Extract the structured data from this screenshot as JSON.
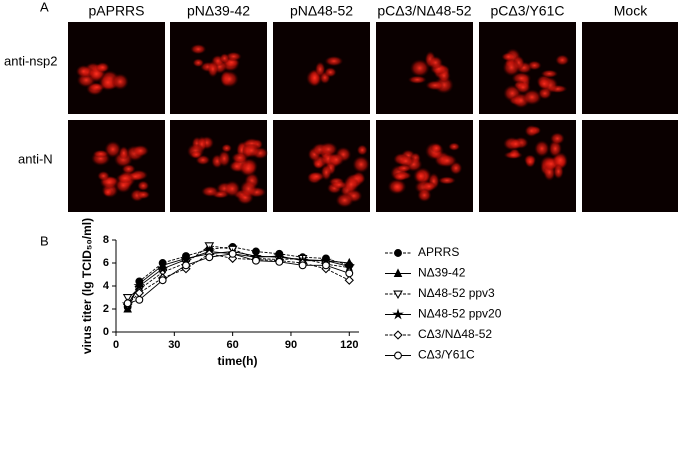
{
  "panel_a": {
    "label": "A",
    "columns": [
      "pAPRRS",
      "pNΔ39-42",
      "pNΔ48-52",
      "pCΔ3/NΔ48-52",
      "pCΔ3/Y61C",
      "Mock"
    ],
    "rows": [
      "anti-nsp2",
      "anti-N"
    ]
  },
  "chart_data": {
    "type": "line",
    "panel_label": "B",
    "x_label": "time(h)",
    "y_label": "virus titer (lg TCID₅₀/ml)",
    "x": [
      6,
      12,
      24,
      36,
      48,
      60,
      72,
      84,
      96,
      108,
      120
    ],
    "xlim": [
      0,
      125
    ],
    "xticks": [
      0,
      30,
      60,
      90,
      120
    ],
    "ylim": [
      0,
      8
    ],
    "yticks": [
      0,
      2,
      4,
      6,
      8
    ],
    "series": [
      {
        "name": "APRRS",
        "color": "#000000",
        "marker": "circle-filled",
        "values": [
          2.2,
          4.4,
          6.0,
          6.6,
          7.2,
          7.4,
          7.0,
          6.8,
          6.5,
          6.4,
          5.8
        ]
      },
      {
        "name": "NΔ39-42",
        "color": "#000000",
        "marker": "triangle-filled",
        "values": [
          2.0,
          4.2,
          5.8,
          6.4,
          6.8,
          7.0,
          6.6,
          6.5,
          6.3,
          6.2,
          6.0
        ]
      },
      {
        "name": "NΔ48-52 ppv3",
        "color": "#000000",
        "marker": "triangle-down-open",
        "values": [
          3.0,
          3.7,
          5.2,
          6.0,
          7.5,
          7.2,
          6.4,
          6.3,
          6.4,
          5.9,
          5.6
        ]
      },
      {
        "name": "NΔ48-52 ppv20",
        "color": "#000000",
        "marker": "star",
        "values": [
          2.4,
          4.0,
          5.5,
          6.3,
          7.0,
          6.8,
          6.5,
          6.6,
          6.2,
          6.2,
          5.7
        ]
      },
      {
        "name": "CΔ3/NΔ48-52",
        "color": "#000000",
        "marker": "diamond-open",
        "values": [
          2.4,
          3.4,
          4.7,
          5.5,
          6.8,
          6.4,
          6.3,
          6.2,
          6.0,
          5.5,
          4.5
        ]
      },
      {
        "name": "CΔ3/Y61C",
        "color": "#000000",
        "marker": "circle-open",
        "values": [
          2.5,
          2.8,
          4.5,
          5.8,
          6.5,
          6.8,
          6.2,
          6.1,
          5.8,
          5.8,
          5.1
        ]
      }
    ]
  }
}
